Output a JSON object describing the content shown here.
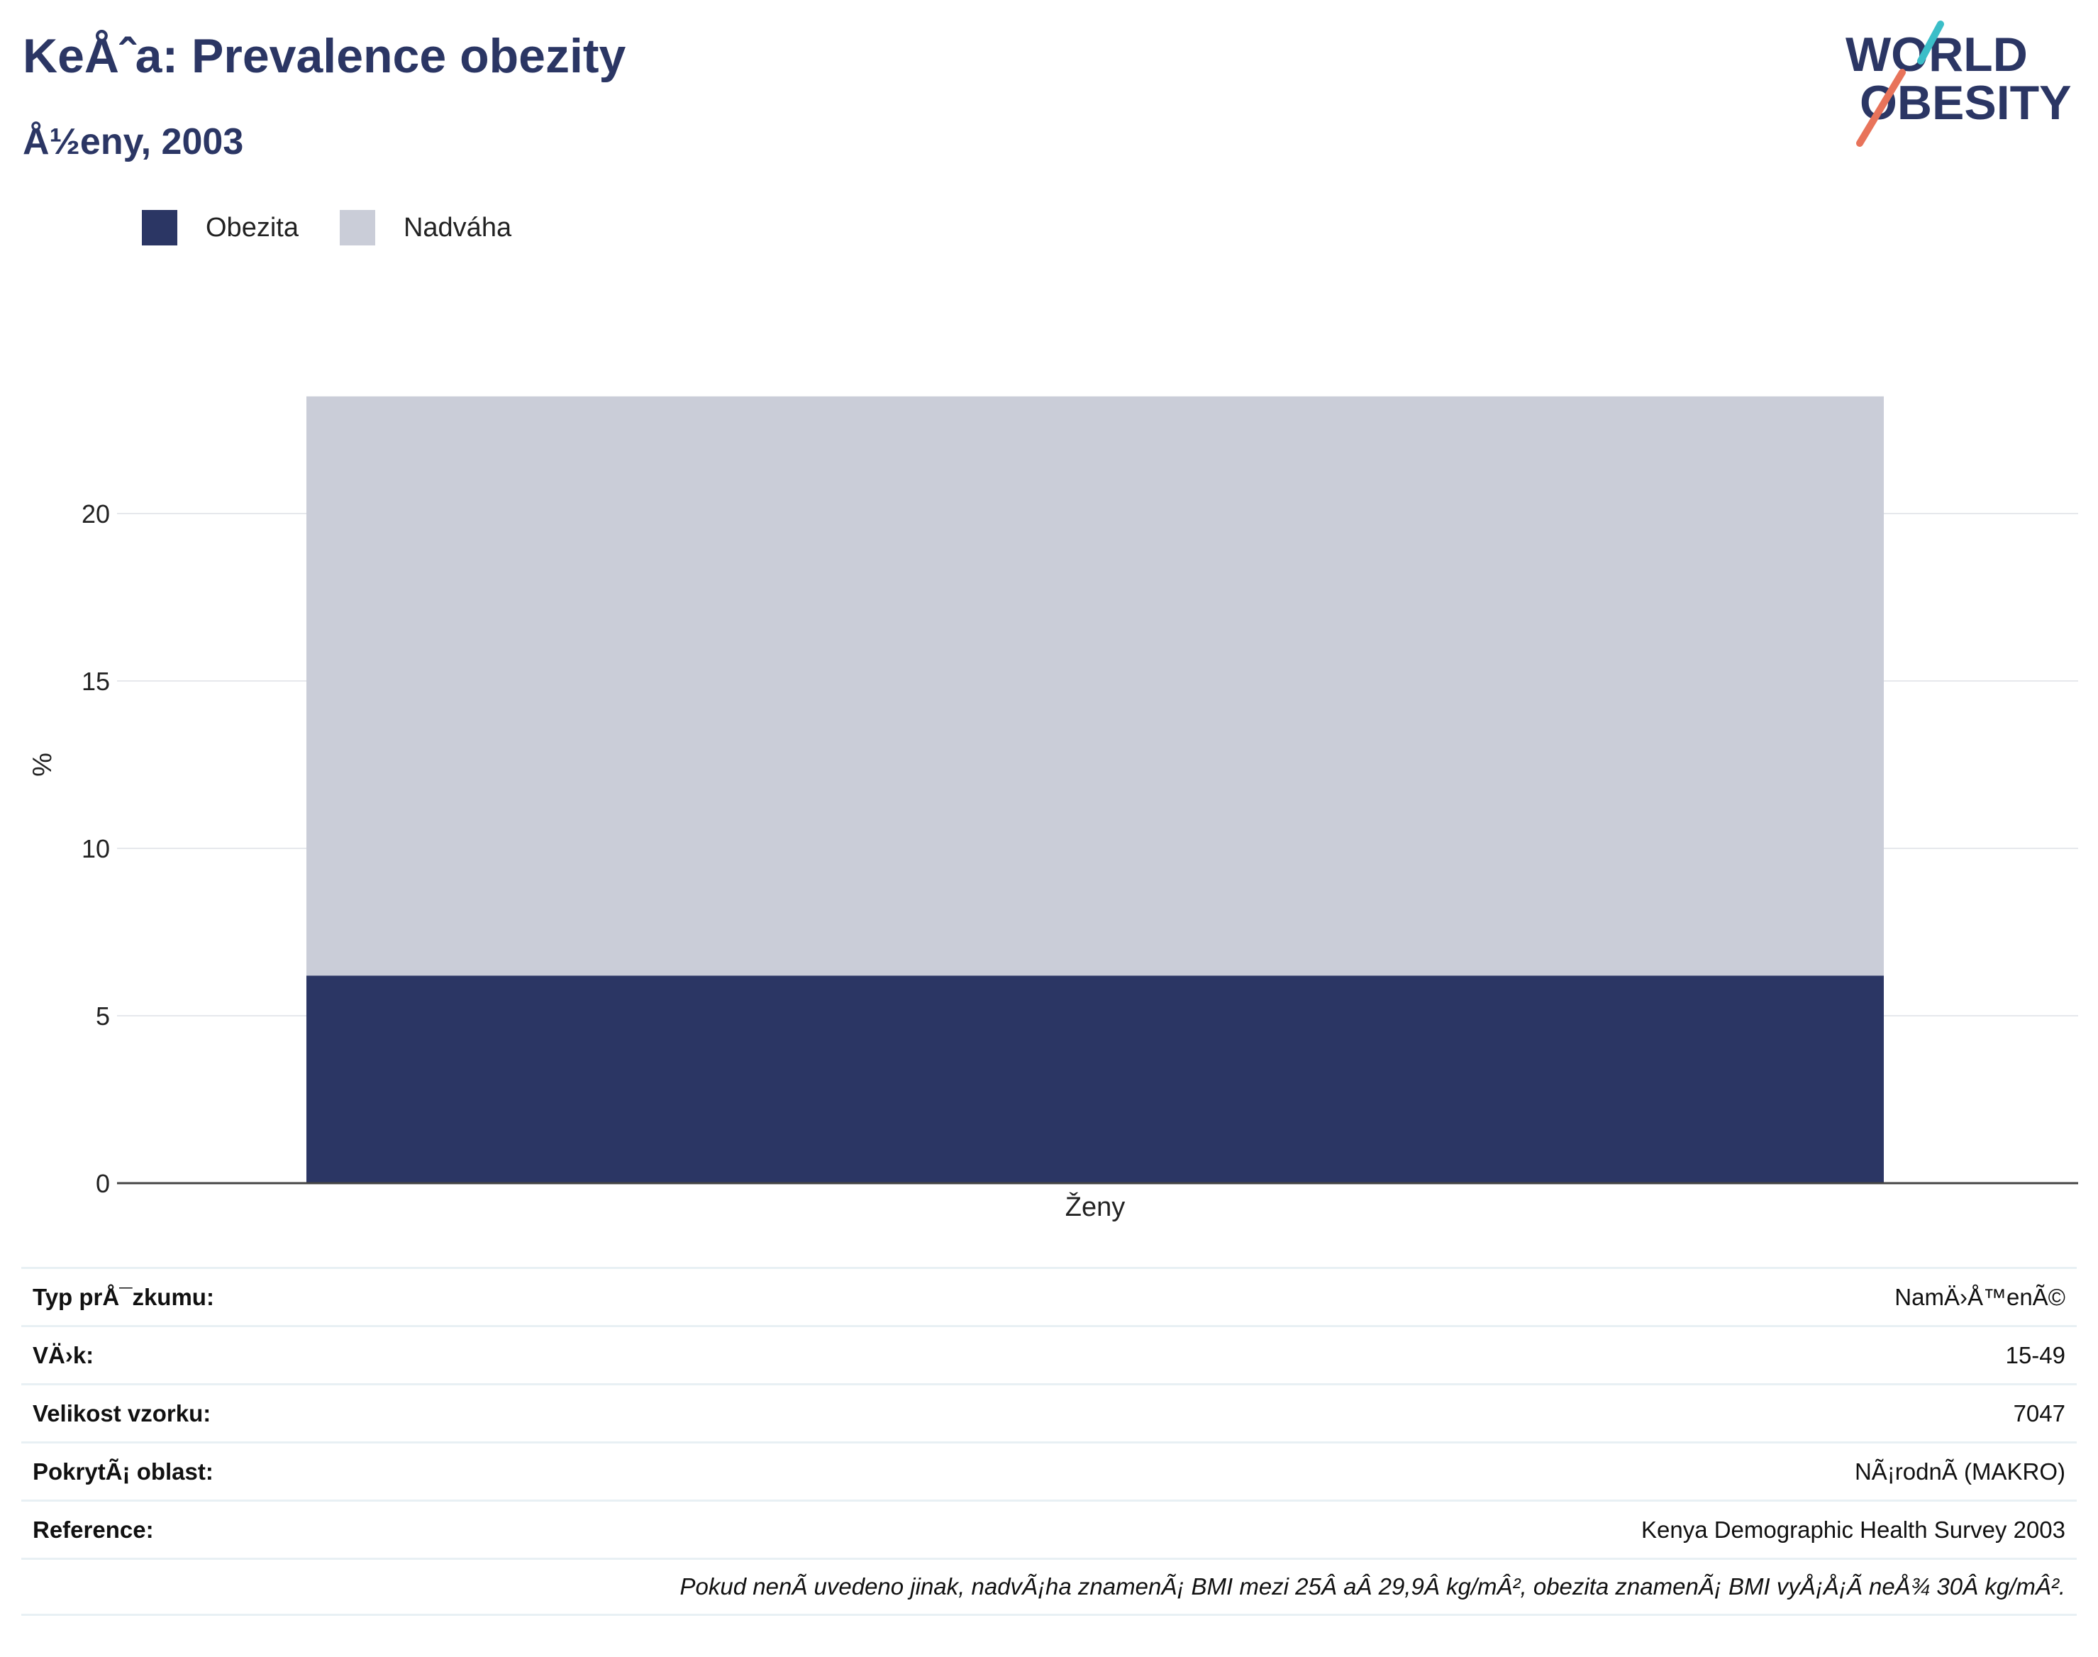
{
  "header": {
    "title": "KeÅˆa: Prevalence obezity",
    "subtitle": "Å½eny, 2003"
  },
  "logo": {
    "line1": "WORLD",
    "line2": "OBESITY"
  },
  "colors": {
    "obesity": "#2b3664",
    "overweight": "#cacdd8",
    "text": "#2b3664",
    "accent_teal": "#3bbec8",
    "accent_coral": "#e8735a"
  },
  "chart_data": {
    "type": "bar",
    "stacked": true,
    "categories": [
      "Ženy"
    ],
    "series": [
      {
        "name": "Obezita",
        "values": [
          6.2
        ]
      },
      {
        "name": "Nadváha",
        "values": [
          17.3
        ]
      }
    ],
    "ylabel": "%",
    "xlabel": "",
    "ylim": [
      0,
      25
    ],
    "yticks": [
      0,
      5,
      10,
      15,
      20
    ],
    "grid": true,
    "legend_position": "top-left"
  },
  "info": {
    "rows": [
      {
        "label": "Typ prÅ¯zkumu:",
        "value": "NamÄ›Å™enÃ©"
      },
      {
        "label": "VÄ›k:",
        "value": "15-49"
      },
      {
        "label": "Velikost vzorku:",
        "value": "7047"
      },
      {
        "label": "PokrytÃ¡ oblast:",
        "value": "NÃ¡rodnÃ (MAKRO)"
      },
      {
        "label": "Reference:",
        "value": "Kenya Demographic Health Survey 2003"
      }
    ],
    "note": "Pokud nenÃ uvedeno jinak, nadvÃ¡ha znamenÃ¡ BMI mezi 25Â aÂ 29,9Â kg/mÂ², obezita znamenÃ¡ BMI vyÅ¡Å¡Ã neÅ¾ 30Â kg/mÂ²."
  }
}
